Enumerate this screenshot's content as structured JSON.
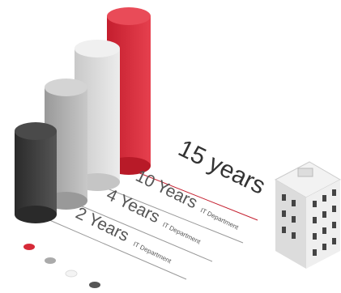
{
  "labels": [
    {
      "years": "15 years"
    },
    {
      "years": "10 Years",
      "dept": "IT Department"
    },
    {
      "years": "4 Years",
      "dept": "IT Department"
    },
    {
      "years": "2 Years",
      "dept": "IT Department"
    }
  ]
}
